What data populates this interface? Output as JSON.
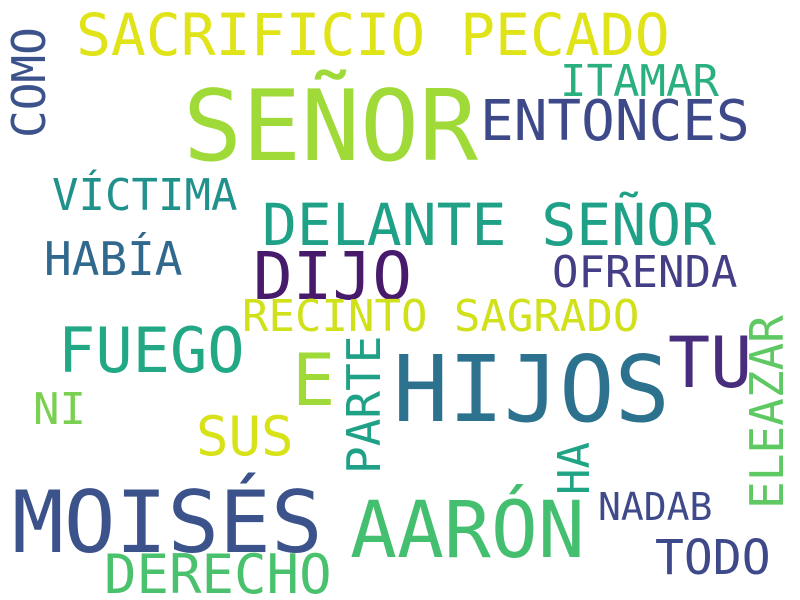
{
  "words": [
    {
      "text": "SEÑOR",
      "color": "#a0da39"
    },
    {
      "text": "SACRIFICIO PECADO",
      "color": "#dfe318"
    },
    {
      "text": "COMO",
      "color": "#3b528b"
    },
    {
      "text": "ITAMAR",
      "color": "#2ab07f"
    },
    {
      "text": "ENTONCES",
      "color": "#3e4989"
    },
    {
      "text": "VÍCTIMA",
      "color": "#21918c"
    },
    {
      "text": "DELANTE SEÑOR",
      "color": "#1fa187"
    },
    {
      "text": "HABÍA",
      "color": "#31688e"
    },
    {
      "text": "DIJO",
      "color": "#481a6c"
    },
    {
      "text": "OFRENDA",
      "color": "#433e85"
    },
    {
      "text": "RECINTO SAGRADO",
      "color": "#d0e11c"
    },
    {
      "text": "FUEGO",
      "color": "#22a884"
    },
    {
      "text": "TU",
      "color": "#472d7b"
    },
    {
      "text": "ELEAZAR",
      "color": "#5ec962"
    },
    {
      "text": "E",
      "color": "#a0da39"
    },
    {
      "text": "PARTE",
      "color": "#1fa187"
    },
    {
      "text": "HIJOS",
      "color": "#2c728e"
    },
    {
      "text": "NI",
      "color": "#7ad151"
    },
    {
      "text": "SUS",
      "color": "#d8e219"
    },
    {
      "text": "HA",
      "color": "#20a486"
    },
    {
      "text": "NADAB",
      "color": "#3e4a89"
    },
    {
      "text": "MOISÉS",
      "color": "#3b528b"
    },
    {
      "text": "AARÓN",
      "color": "#44bf70"
    },
    {
      "text": "TODO",
      "color": "#3e4989"
    },
    {
      "text": "DERECHO",
      "color": "#4ac16d"
    }
  ]
}
